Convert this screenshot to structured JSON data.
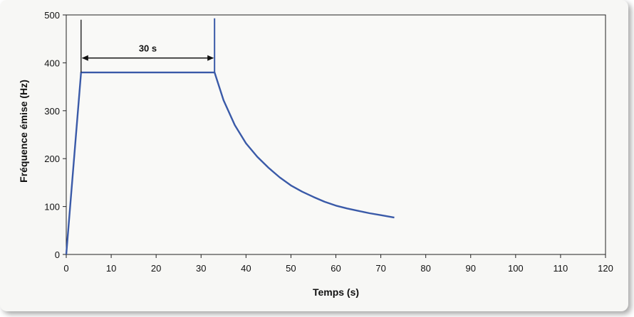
{
  "chart_data": {
    "type": "line",
    "title": "",
    "xlabel": "Temps (s)",
    "ylabel": "Fréquence émise (Hz)",
    "xlim": [
      0,
      120
    ],
    "ylim": [
      0,
      500
    ],
    "xticks": [
      0,
      10,
      20,
      30,
      40,
      50,
      60,
      70,
      80,
      90,
      100,
      110,
      120
    ],
    "yticks": [
      0,
      100,
      200,
      300,
      400,
      500
    ],
    "grid": true,
    "line_color": "#3a5aa8",
    "series": [
      {
        "x": [
          0,
          3.3,
          33.0,
          35,
          37.5,
          40,
          42.5,
          45,
          47.5,
          50,
          52.5,
          55,
          57.5,
          60,
          62.5,
          65,
          67.5,
          70,
          73
        ],
        "y": [
          0,
          380,
          380,
          322,
          270,
          232,
          204,
          181,
          161,
          144,
          131,
          120,
          110,
          102,
          96,
          91,
          86,
          82,
          77
        ]
      }
    ],
    "annotation": {
      "label": "30 s",
      "x_start": 3.3,
      "x_end": 33.0,
      "y": 410,
      "marker_top": 490
    }
  }
}
